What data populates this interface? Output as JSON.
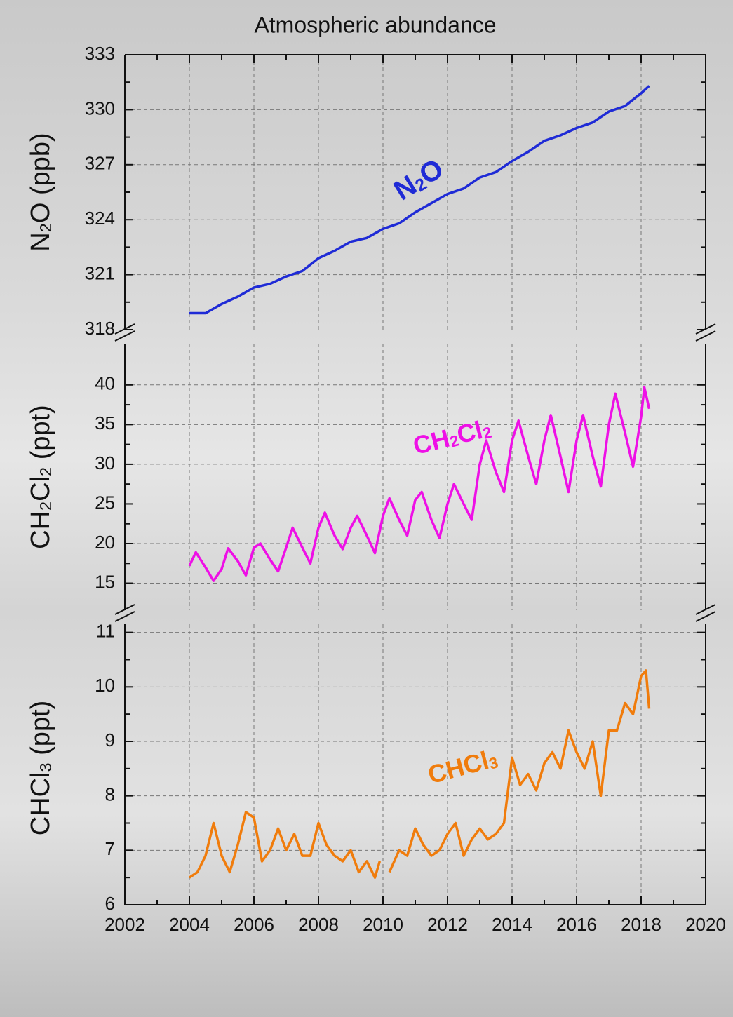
{
  "chart_data": [
    {
      "type": "line",
      "title": "Atmospheric abundance",
      "y_label": [
        "N",
        "2",
        "O (ppb)"
      ],
      "label": [
        "N",
        "2",
        "O"
      ],
      "color": "#1f2bd6",
      "xlim": [
        2002,
        2020
      ],
      "xticks": [
        2002,
        2004,
        2006,
        2008,
        2010,
        2012,
        2014,
        2016,
        2018,
        2020
      ],
      "ylim": [
        318,
        333
      ],
      "yticks": [
        318,
        321,
        324,
        327,
        330,
        333
      ],
      "grid": true,
      "x": [
        2004,
        2004.5,
        2005,
        2005.5,
        2006,
        2006.5,
        2007,
        2007.5,
        2008,
        2008.5,
        2009,
        2009.5,
        2010,
        2010.5,
        2011,
        2011.5,
        2012,
        2012.5,
        2013,
        2013.5,
        2014,
        2014.5,
        2015,
        2015.5,
        2016,
        2016.5,
        2017,
        2017.5,
        2018,
        2018.25
      ],
      "values": [
        318.9,
        318.9,
        319.4,
        319.8,
        320.3,
        320.5,
        320.9,
        321.2,
        321.9,
        322.3,
        322.8,
        323.0,
        323.5,
        323.8,
        324.4,
        324.9,
        325.4,
        325.7,
        326.3,
        326.6,
        327.2,
        327.7,
        328.3,
        328.6,
        329.0,
        329.3,
        329.9,
        330.2,
        330.9,
        331.3
      ]
    },
    {
      "type": "line",
      "y_label": [
        "CH",
        "2",
        "Cl",
        "2",
        " (ppt)"
      ],
      "label": [
        "CH",
        "2",
        "Cl",
        "2"
      ],
      "color": "#ee10e6",
      "xlim": [
        2002,
        2020
      ],
      "xticks": [
        2002,
        2004,
        2006,
        2008,
        2010,
        2012,
        2014,
        2016,
        2018,
        2020
      ],
      "ylim": [
        11.6,
        45.2
      ],
      "yticks": [
        15,
        20,
        25,
        30,
        35,
        40
      ],
      "grid": true,
      "x": [
        2004,
        2004.2,
        2004.5,
        2004.75,
        2005,
        2005.2,
        2005.5,
        2005.75,
        2006,
        2006.2,
        2006.5,
        2006.75,
        2007,
        2007.2,
        2007.5,
        2007.75,
        2008,
        2008.2,
        2008.5,
        2008.75,
        2009,
        2009.2,
        2009.5,
        2009.75,
        2010,
        2010.2,
        2010.5,
        2010.75,
        2011,
        2011.2,
        2011.5,
        2011.75,
        2012,
        2012.2,
        2012.5,
        2012.75,
        2013,
        2013.2,
        2013.5,
        2013.75,
        2014,
        2014.2,
        2014.5,
        2014.75,
        2015,
        2015.2,
        2015.5,
        2015.75,
        2016,
        2016.2,
        2016.5,
        2016.75,
        2017,
        2017.2,
        2017.5,
        2017.75,
        2018,
        2018.1,
        2018.25
      ],
      "values": [
        17.2,
        18.9,
        17.0,
        15.3,
        16.8,
        19.4,
        17.8,
        16.0,
        19.5,
        20.0,
        18.0,
        16.5,
        19.5,
        22.0,
        19.5,
        17.5,
        22.0,
        23.9,
        21.0,
        19.3,
        22.0,
        23.5,
        21.0,
        18.8,
        23.5,
        25.7,
        23.0,
        21.0,
        25.5,
        26.5,
        23.0,
        20.7,
        25.0,
        27.5,
        25.0,
        23.0,
        30.0,
        33.0,
        29.0,
        26.5,
        33.0,
        35.5,
        31.0,
        27.5,
        33.0,
        36.2,
        31.0,
        26.5,
        33.0,
        36.2,
        31.0,
        27.2,
        35.0,
        38.9,
        34.0,
        29.7,
        36.0,
        39.7,
        37.0
      ]
    },
    {
      "type": "line",
      "y_label": [
        "CHCl",
        "3",
        " (ppt)"
      ],
      "label": [
        "CHCl",
        "3"
      ],
      "color": "#f07c0c",
      "xlim": [
        2002,
        2020
      ],
      "xticks": [
        2002,
        2004,
        2006,
        2008,
        2010,
        2012,
        2014,
        2016,
        2018,
        2020
      ],
      "ylim": [
        6,
        11.15
      ],
      "yticks": [
        6,
        7,
        8,
        9,
        10,
        11
      ],
      "grid": true,
      "x": [
        2004,
        2004.25,
        2004.5,
        2004.75,
        2005,
        2005.25,
        2005.5,
        2005.75,
        2006,
        2006.25,
        2006.5,
        2006.75,
        2007,
        2007.25,
        2007.5,
        2007.75,
        2008,
        2008.25,
        2008.5,
        2008.75,
        2009,
        2009.25,
        2009.5,
        2009.75,
        2009.9,
        2010,
        2010.2,
        2010.5,
        2010.75,
        2011,
        2011.25,
        2011.5,
        2011.75,
        2012,
        2012.25,
        2012.5,
        2012.75,
        2013,
        2013.25,
        2013.5,
        2013.75,
        2014,
        2014.25,
        2014.5,
        2014.75,
        2015,
        2015.25,
        2015.5,
        2015.75,
        2016,
        2016.25,
        2016.5,
        2016.75,
        2017,
        2017.25,
        2017.5,
        2017.75,
        2018,
        2018.15,
        2018.25
      ],
      "values": [
        6.5,
        6.6,
        6.9,
        7.5,
        6.9,
        6.6,
        7.1,
        7.7,
        7.6,
        6.8,
        7.0,
        7.4,
        7.0,
        7.3,
        6.9,
        6.9,
        7.5,
        7.1,
        6.9,
        6.8,
        7.0,
        6.6,
        6.8,
        6.5,
        6.8,
        null,
        6.6,
        7.0,
        6.9,
        7.4,
        7.1,
        6.9,
        7.0,
        7.3,
        7.5,
        6.9,
        7.2,
        7.4,
        7.2,
        7.3,
        7.5,
        8.7,
        8.2,
        8.4,
        8.1,
        8.6,
        8.8,
        8.5,
        9.2,
        8.8,
        8.5,
        9.0,
        8.0,
        9.2,
        9.2,
        9.7,
        9.5,
        10.2,
        10.3,
        9.6
      ]
    }
  ]
}
